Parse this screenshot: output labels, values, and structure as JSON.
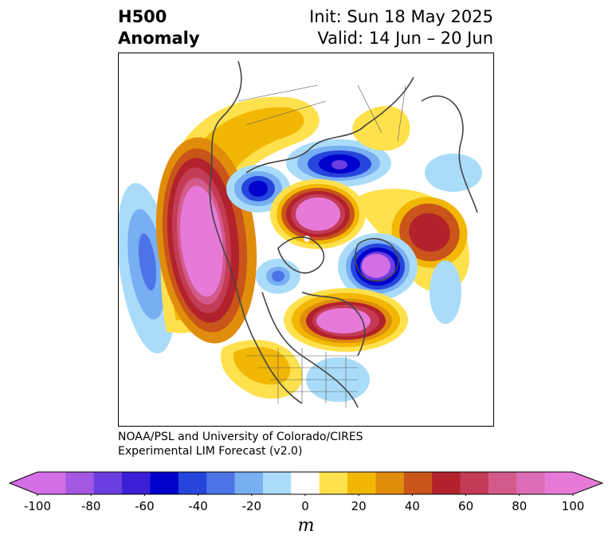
{
  "header": {
    "title_line1": "H500",
    "title_line2": "Anomaly",
    "init_line": "Init: Sun 18 May 2025",
    "valid_line": "Valid: 14 Jun – 20 Jun"
  },
  "credits": {
    "line1": "NOAA/PSL and University of Colorado/CIRES",
    "line2": "Experimental LIM Forecast (v2.0)"
  },
  "colorbar": {
    "unit": "m",
    "ticks": [
      "-100",
      "-80",
      "-60",
      "-40",
      "-20",
      "0",
      "20",
      "40",
      "60",
      "80",
      "100"
    ],
    "levels": [
      -100,
      -90,
      -80,
      -70,
      -60,
      -50,
      -40,
      -30,
      -20,
      -10,
      10,
      20,
      30,
      40,
      50,
      60,
      70,
      80,
      90,
      100
    ],
    "colors": [
      "#d36ee6",
      "#a457e0",
      "#6b3ee0",
      "#3a1fd6",
      "#0000cc",
      "#2545dc",
      "#4c74e6",
      "#78aef2",
      "#aadcfa",
      "#ffffff",
      "#ffe14d",
      "#f2b705",
      "#e08d0c",
      "#c9551a",
      "#b2222c",
      "#c43b56",
      "#d35a8a",
      "#de6db9",
      "#e77ad8"
    ]
  },
  "map": {
    "projection": "north-polar-stereographic",
    "variable": "500 hPa geopotential height anomaly"
  }
}
